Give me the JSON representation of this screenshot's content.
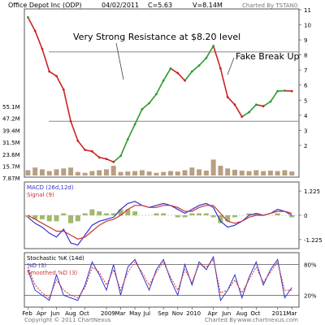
{
  "header": {
    "title": "Office Depot Inc (ODP)",
    "date": "04/02/2011",
    "close": "C=5.63",
    "volume": "V=8.14M",
    "charted_by": "Charted By TSTAN0"
  },
  "annotations": {
    "resistance": "Very Strong Resistance at $8.20 level",
    "fake_breakup": "Fake Break Up"
  },
  "footer": {
    "copyright": "Copyright © 2011 ChartNexus",
    "url": "www.chartnexus.com",
    "charted_by_label": "Charted By"
  },
  "colors": {
    "up": "#2e9a2e",
    "down": "#cc2222",
    "macd": "#3333cc",
    "signal": "#cc3333",
    "hist": "#8aa64a",
    "stoch_k": "#3333cc",
    "stoch_d": "#cc3333",
    "level_line": "#888888"
  },
  "chart_data": [
    {
      "type": "line",
      "name": "price",
      "ylim": [
        0,
        11
      ],
      "y_ticks": [
        "11",
        "10",
        "9",
        "8",
        "7",
        "6",
        "5",
        "4",
        "3",
        "2"
      ],
      "volume_ticks": [
        "55.1M",
        "47.2M",
        "39.4M",
        "31.5M",
        "23.6M",
        "15.7M",
        "7.87M"
      ],
      "x_labels": [
        "Feb",
        "Apr",
        "Jun",
        "Aug",
        "Oct",
        "2009",
        "Mar",
        "May",
        "Jul",
        "Sep",
        "Nov",
        "2010",
        "Apr",
        "Jun",
        "Aug",
        "Oct",
        "2011",
        "Mar"
      ],
      "x_positions": [
        0,
        2,
        4,
        6,
        8,
        11,
        13,
        15,
        17,
        19,
        21,
        23,
        26,
        28,
        30,
        32,
        35,
        37
      ],
      "x_range": [
        -0.5,
        38
      ],
      "months": [
        0,
        1,
        2,
        3,
        4,
        5,
        6,
        7,
        8,
        9,
        10,
        11,
        12,
        13,
        14,
        15,
        16,
        17,
        18,
        19,
        20,
        21,
        22,
        23,
        24,
        25,
        26,
        27,
        28,
        29,
        30,
        31,
        32,
        33,
        34,
        35,
        36,
        37
      ],
      "close": [
        10.5,
        9.6,
        8.4,
        6.9,
        6.6,
        5.7,
        3.6,
        2.3,
        1.7,
        1.6,
        1.2,
        1.1,
        0.9,
        1.3,
        2.4,
        3.4,
        4.4,
        4.8,
        5.4,
        6.3,
        7.1,
        6.8,
        6.3,
        6.9,
        7.3,
        7.8,
        8.6,
        7.1,
        5.2,
        4.7,
        3.9,
        4.2,
        4.7,
        4.6,
        4.9,
        5.6,
        5.63,
        5.6
      ],
      "volume": [
        12,
        18,
        14,
        10,
        14,
        16,
        18,
        8,
        6,
        10,
        12,
        14,
        22,
        8,
        9,
        10,
        12,
        9,
        6,
        8,
        10,
        9,
        12,
        18,
        14,
        11,
        36,
        22,
        16,
        13,
        11,
        10,
        12,
        10,
        11,
        10,
        12,
        9
      ],
      "levels": [
        8.2,
        3.6
      ]
    },
    {
      "type": "line",
      "name": "macd",
      "legend": [
        "MACD (26d,12d)",
        "Signal (9)"
      ],
      "y_ticks": [
        "1.225",
        "0",
        "-1.225"
      ],
      "ylim": [
        -1.6,
        1.6
      ],
      "macd": [
        -0.1,
        -0.4,
        -0.6,
        -0.9,
        -1.1,
        -0.7,
        -1.4,
        -1.5,
        -1.0,
        -0.5,
        -0.3,
        -0.2,
        -0.1,
        0.3,
        0.6,
        0.7,
        0.5,
        0.4,
        0.5,
        0.6,
        0.5,
        0.3,
        0.1,
        0.3,
        0.5,
        0.6,
        0.4,
        -0.3,
        -0.6,
        -0.5,
        -0.3,
        0.0,
        0.1,
        0.0,
        0.1,
        0.3,
        0.2,
        0.0
      ],
      "signal": [
        0.0,
        -0.2,
        -0.4,
        -0.6,
        -0.8,
        -0.8,
        -1.0,
        -1.2,
        -1.1,
        -0.8,
        -0.5,
        -0.3,
        -0.2,
        0.0,
        0.3,
        0.5,
        0.5,
        0.4,
        0.4,
        0.5,
        0.5,
        0.4,
        0.2,
        0.2,
        0.4,
        0.5,
        0.5,
        0.1,
        -0.3,
        -0.4,
        -0.3,
        -0.1,
        0.0,
        0.0,
        0.1,
        0.2,
        0.2,
        0.1
      ]
    },
    {
      "type": "line",
      "name": "stochastic",
      "legend": [
        "Stochastic %K (14d)",
        "%D (3)",
        "Smoothed %D (3)"
      ],
      "y_ticks": [
        "80%",
        "20%"
      ],
      "ylim": [
        0,
        100
      ],
      "k": [
        70,
        30,
        20,
        10,
        60,
        20,
        15,
        10,
        40,
        85,
        60,
        30,
        80,
        20,
        75,
        90,
        60,
        30,
        70,
        90,
        50,
        20,
        80,
        40,
        85,
        70,
        95,
        10,
        30,
        60,
        15,
        55,
        85,
        40,
        70,
        90,
        15,
        35
      ],
      "d": [
        75,
        40,
        25,
        15,
        50,
        30,
        20,
        15,
        35,
        75,
        65,
        40,
        70,
        30,
        65,
        85,
        65,
        40,
        65,
        85,
        55,
        30,
        70,
        45,
        80,
        75,
        90,
        25,
        30,
        50,
        25,
        50,
        75,
        45,
        65,
        85,
        30,
        30
      ]
    }
  ]
}
